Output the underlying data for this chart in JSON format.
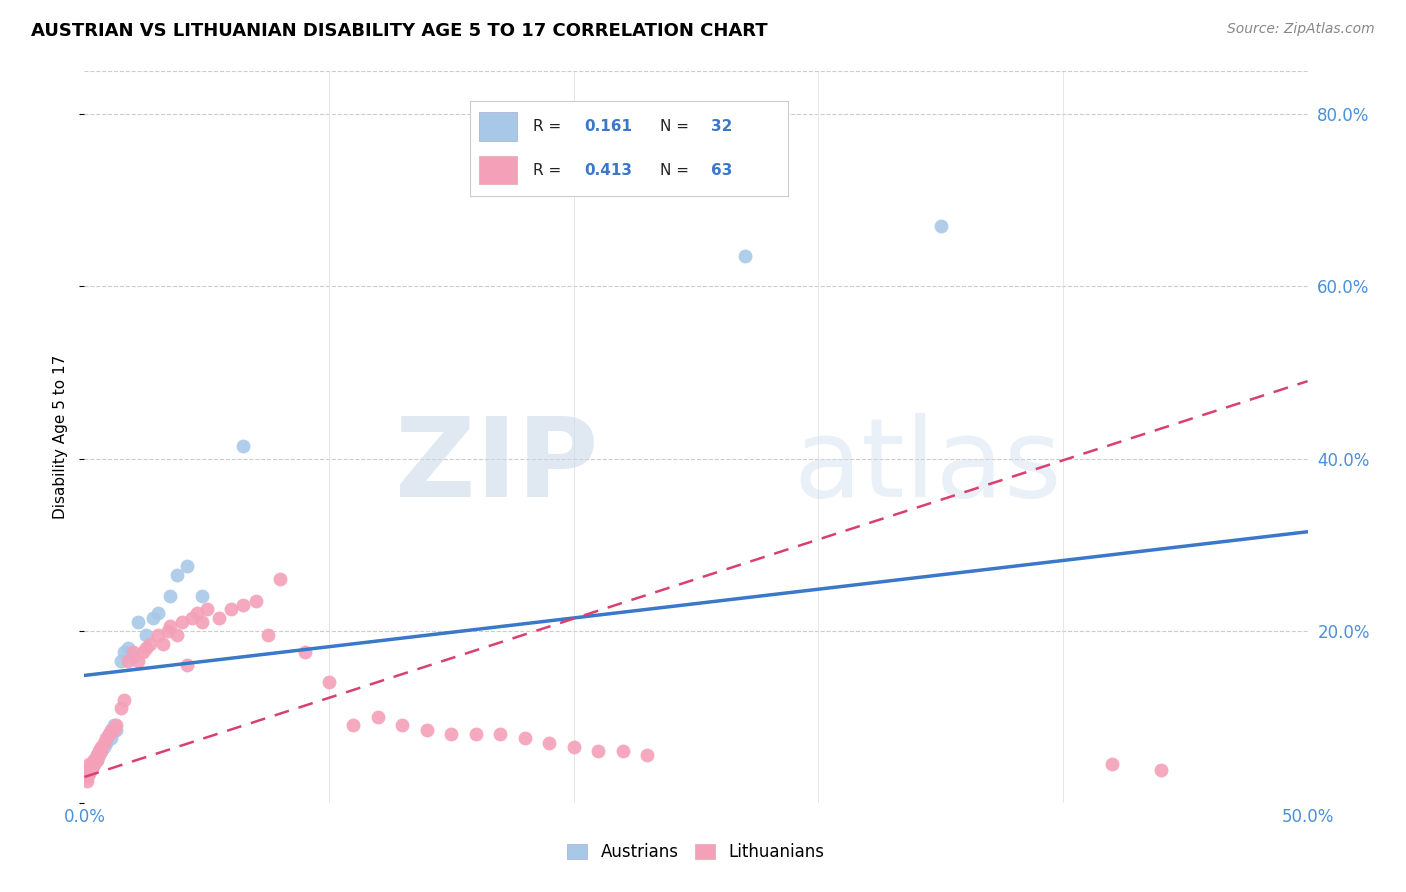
{
  "title": "AUSTRIAN VS LITHUANIAN DISABILITY AGE 5 TO 17 CORRELATION CHART",
  "source": "Source: ZipAtlas.com",
  "ylabel": "Disability Age 5 to 17",
  "xlim": [
    0.0,
    0.5
  ],
  "ylim": [
    0.0,
    0.85
  ],
  "xtick_positions": [
    0.0,
    0.1,
    0.2,
    0.3,
    0.4,
    0.5
  ],
  "ytick_positions": [
    0.0,
    0.2,
    0.4,
    0.6,
    0.8
  ],
  "austrian_color": "#A8C8E8",
  "lithuanian_color": "#F4A0B8",
  "austrian_trendline_color": "#3A78C8",
  "lithuanian_trendline_color": "#D84070",
  "legend_R_austrians": "0.161",
  "legend_N_austrians": "32",
  "legend_R_lithuanians": "0.413",
  "legend_N_lithuanians": "63",
  "austrians_x": [
    0.001,
    0.002,
    0.002,
    0.003,
    0.003,
    0.004,
    0.004,
    0.005,
    0.005,
    0.006,
    0.007,
    0.008,
    0.009,
    0.01,
    0.011,
    0.012,
    0.013,
    0.015,
    0.016,
    0.018,
    0.02,
    0.022,
    0.025,
    0.028,
    0.03,
    0.035,
    0.038,
    0.042,
    0.048,
    0.065,
    0.27,
    0.35
  ],
  "austrians_y": [
    0.03,
    0.035,
    0.04,
    0.04,
    0.045,
    0.045,
    0.05,
    0.05,
    0.055,
    0.06,
    0.06,
    0.065,
    0.07,
    0.08,
    0.075,
    0.09,
    0.085,
    0.165,
    0.175,
    0.18,
    0.17,
    0.21,
    0.195,
    0.215,
    0.22,
    0.24,
    0.265,
    0.275,
    0.24,
    0.415,
    0.635,
    0.67
  ],
  "lithuanians_x": [
    0.001,
    0.001,
    0.002,
    0.002,
    0.002,
    0.003,
    0.003,
    0.004,
    0.004,
    0.005,
    0.005,
    0.006,
    0.006,
    0.007,
    0.007,
    0.008,
    0.009,
    0.01,
    0.011,
    0.012,
    0.013,
    0.015,
    0.016,
    0.018,
    0.02,
    0.022,
    0.024,
    0.025,
    0.027,
    0.03,
    0.032,
    0.034,
    0.035,
    0.038,
    0.04,
    0.042,
    0.044,
    0.046,
    0.048,
    0.05,
    0.055,
    0.06,
    0.065,
    0.07,
    0.075,
    0.08,
    0.09,
    0.1,
    0.11,
    0.12,
    0.13,
    0.14,
    0.15,
    0.16,
    0.17,
    0.18,
    0.19,
    0.2,
    0.21,
    0.22,
    0.23,
    0.42,
    0.44
  ],
  "lithuanians_y": [
    0.025,
    0.03,
    0.035,
    0.04,
    0.045,
    0.04,
    0.045,
    0.045,
    0.05,
    0.05,
    0.055,
    0.055,
    0.06,
    0.06,
    0.065,
    0.07,
    0.075,
    0.08,
    0.085,
    0.085,
    0.09,
    0.11,
    0.12,
    0.165,
    0.175,
    0.165,
    0.175,
    0.18,
    0.185,
    0.195,
    0.185,
    0.2,
    0.205,
    0.195,
    0.21,
    0.16,
    0.215,
    0.22,
    0.21,
    0.225,
    0.215,
    0.225,
    0.23,
    0.235,
    0.195,
    0.26,
    0.175,
    0.14,
    0.09,
    0.1,
    0.09,
    0.085,
    0.08,
    0.08,
    0.08,
    0.075,
    0.07,
    0.065,
    0.06,
    0.06,
    0.055,
    0.045,
    0.038
  ],
  "austrian_trend_x0": 0.0,
  "austrian_trend_x1": 0.5,
  "austrian_trend_y0": 0.148,
  "austrian_trend_y1": 0.315,
  "lithuanian_trend_x0": 0.0,
  "lithuanian_trend_x1": 0.5,
  "lithuanian_trend_y0": 0.03,
  "lithuanian_trend_y1": 0.49
}
